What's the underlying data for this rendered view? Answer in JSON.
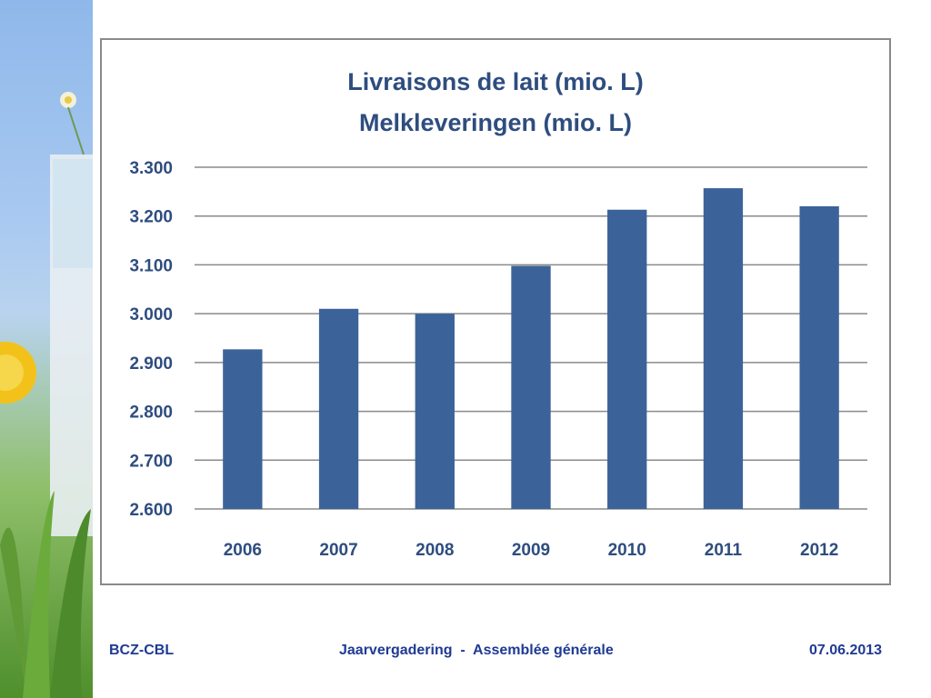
{
  "footer": {
    "left": "BCZ-CBL",
    "center": "Jaarvergadering  -  Assemblée générale",
    "right": "07.06.2013"
  },
  "colors": {
    "bar": "#3c6399",
    "title": "#2e4d7f",
    "axis_text": "#2e4d7f",
    "footer": "#1f3a93",
    "gridline": "#8a8a8a"
  },
  "chart_data": {
    "type": "bar",
    "title": "Livraisons de lait (mio. L)",
    "subtitle": "Melkleveringen (mio. L)",
    "xlabel": "",
    "ylabel": "",
    "categories": [
      "2006",
      "2007",
      "2008",
      "2009",
      "2010",
      "2011",
      "2012"
    ],
    "values": [
      2927,
      3010,
      3000,
      3098,
      3213,
      3257,
      3220
    ],
    "ylim": [
      2600,
      3300
    ],
    "yticks": [
      2600,
      2700,
      2800,
      2900,
      3000,
      3100,
      3200,
      3300
    ],
    "ytick_labels": [
      "2.600",
      "2.700",
      "2.800",
      "2.900",
      "3.000",
      "3.100",
      "3.200",
      "3.300"
    ],
    "grid": true,
    "legend": "none"
  }
}
